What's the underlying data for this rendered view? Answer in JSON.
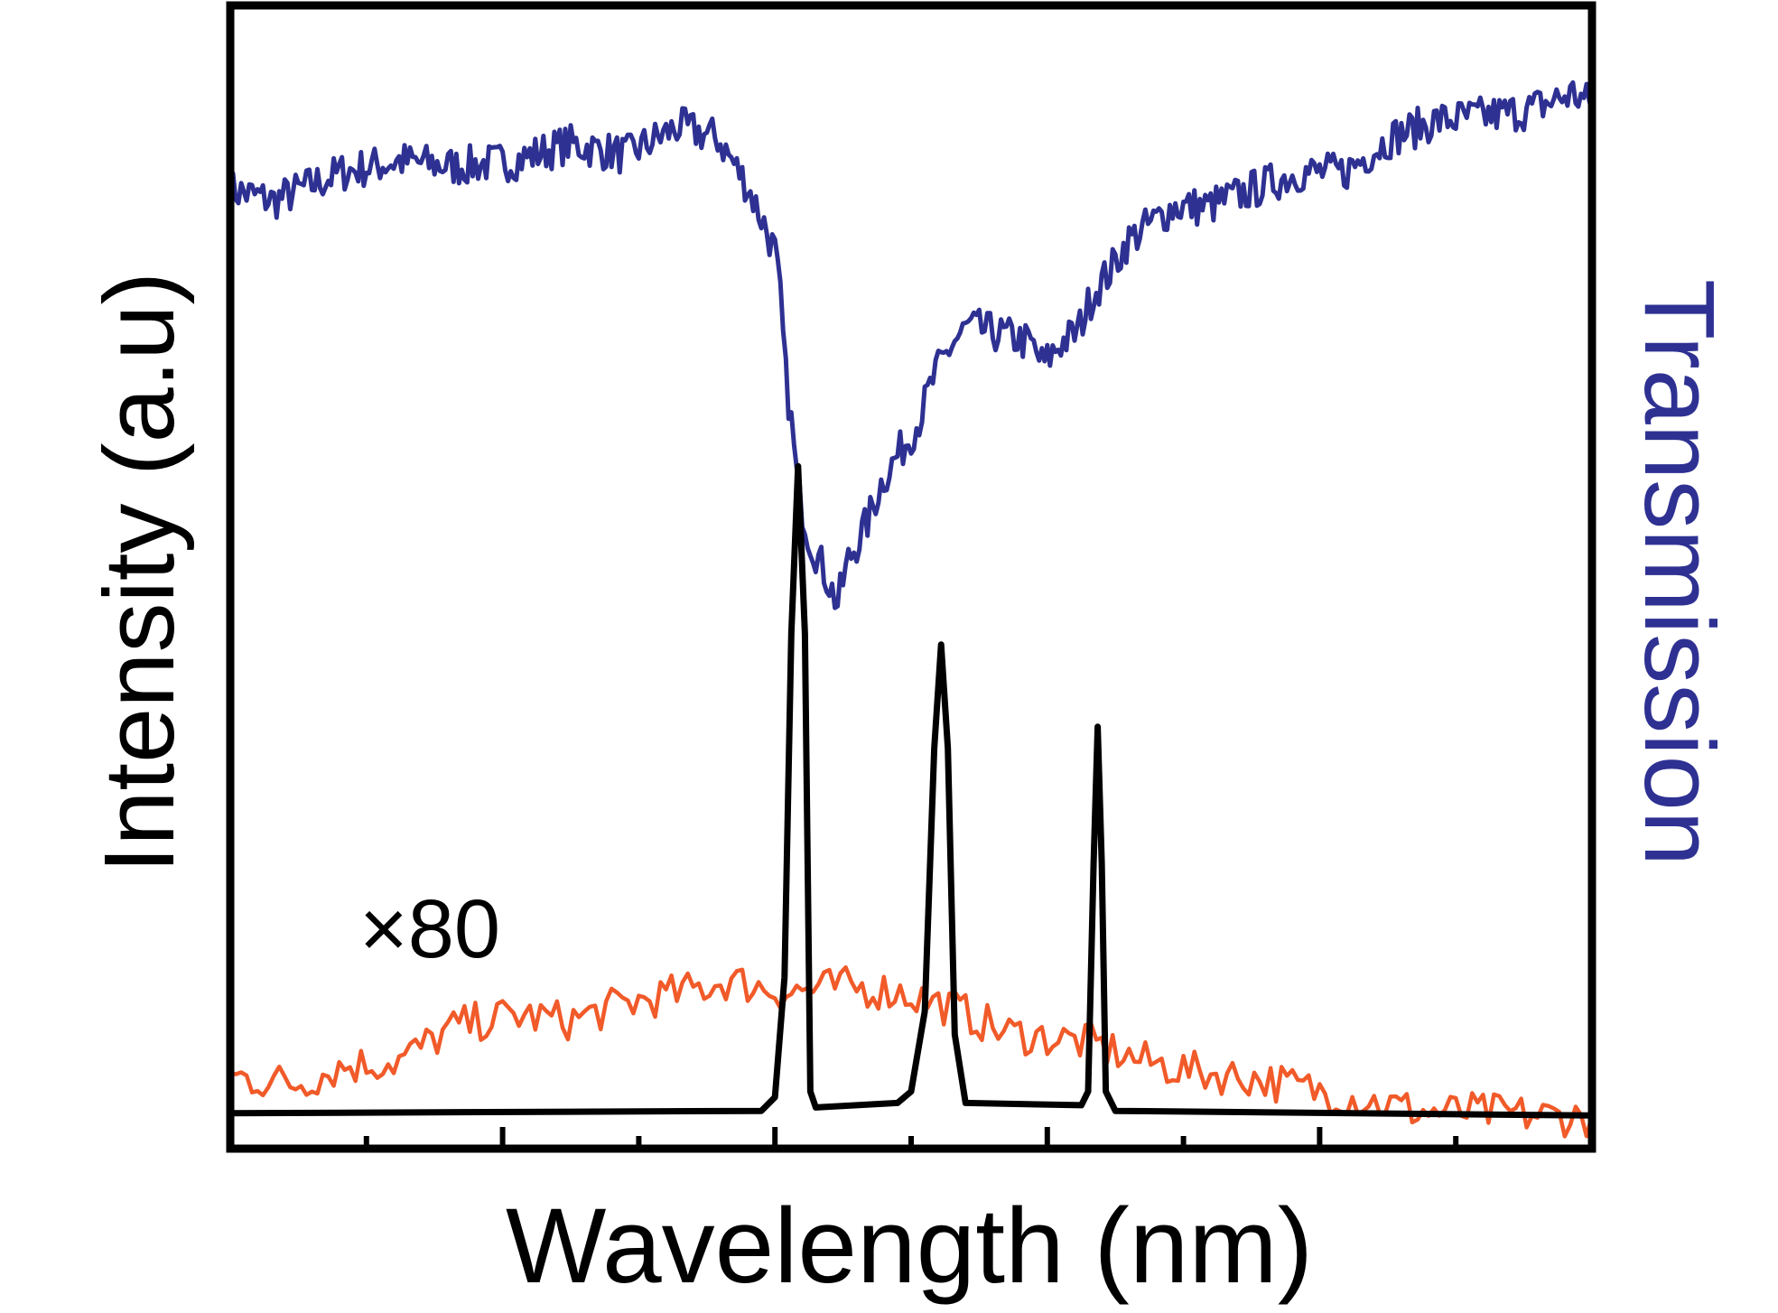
{
  "chart_data": {
    "type": "line",
    "title": "",
    "xlabel": "Wavelength (nm)",
    "ylabel": "Intensity (a.u)",
    "ylabel_right": "Transmission",
    "annotation": "×80",
    "xlim": [
      0,
      10
    ],
    "ylim": [
      0,
      1
    ],
    "grid": false,
    "legend": "none",
    "xticks_minor": [
      1,
      3,
      5,
      7,
      9
    ],
    "xticks_major": [
      2,
      4,
      6,
      8
    ],
    "tick_labels": [],
    "colors": {
      "transmission": "#2e3192",
      "scaled_spectrum": "#f15a29",
      "intensity": "#000000",
      "right_label": "#2e3192"
    },
    "series": [
      {
        "key": "transmission",
        "axis": "right",
        "x": [
          0,
          0.32,
          0.82,
          1.24,
          1.66,
          2.08,
          2.49,
          2.91,
          3.29,
          3.58,
          3.79,
          3.92,
          4.0,
          4.04,
          4.08,
          4.13,
          4.17,
          4.25,
          4.38,
          4.46,
          4.54,
          4.67,
          4.79,
          4.92,
          5.05,
          5.17,
          5.3,
          5.42,
          5.59,
          5.76,
          5.88,
          5.97,
          6.09,
          6.22,
          6.34,
          6.47,
          6.59,
          6.76,
          6.93,
          7.18,
          7.51,
          7.85,
          8.18,
          8.52,
          8.85,
          9.19,
          9.52,
          9.86,
          10
        ],
        "y": [
          0.839,
          0.829,
          0.854,
          0.864,
          0.859,
          0.864,
          0.879,
          0.869,
          0.894,
          0.884,
          0.844,
          0.809,
          0.784,
          0.744,
          0.675,
          0.625,
          0.575,
          0.535,
          0.5,
          0.476,
          0.515,
          0.545,
          0.585,
          0.61,
          0.635,
          0.675,
          0.704,
          0.719,
          0.714,
          0.709,
          0.704,
          0.685,
          0.704,
          0.714,
          0.749,
          0.769,
          0.794,
          0.809,
          0.824,
          0.824,
          0.839,
          0.854,
          0.854,
          0.884,
          0.899,
          0.903,
          0.908,
          0.923,
          0.913
        ]
      },
      {
        "key": "scaled_spectrum",
        "axis": "left",
        "x": [
          0,
          0.49,
          0.82,
          1.24,
          1.66,
          2.08,
          2.49,
          2.91,
          3.33,
          3.66,
          4.08,
          4.5,
          4.92,
          5.34,
          5.67,
          6.01,
          6.34,
          6.68,
          7.1,
          7.51,
          7.93,
          8.35,
          8.77,
          9.19,
          9.61,
          10
        ],
        "y": [
          0.063,
          0.057,
          0.072,
          0.077,
          0.107,
          0.117,
          0.112,
          0.127,
          0.137,
          0.147,
          0.137,
          0.142,
          0.137,
          0.122,
          0.102,
          0.097,
          0.092,
          0.077,
          0.067,
          0.062,
          0.052,
          0.042,
          0.032,
          0.032,
          0.029,
          0.027
        ]
      },
      {
        "key": "intensity",
        "axis": "left",
        "x": [
          0,
          3.9,
          4.0,
          4.07,
          4.12,
          4.17,
          4.22,
          4.26,
          4.3,
          4.9,
          5.0,
          5.1,
          5.17,
          5.22,
          5.27,
          5.32,
          5.4,
          6.25,
          6.3,
          6.34,
          6.37,
          6.4,
          6.43,
          6.5,
          10
        ],
        "y": [
          0.031,
          0.033,
          0.045,
          0.15,
          0.45,
          0.597,
          0.45,
          0.05,
          0.036,
          0.04,
          0.05,
          0.12,
          0.35,
          0.441,
          0.35,
          0.1,
          0.04,
          0.038,
          0.05,
          0.25,
          0.369,
          0.25,
          0.05,
          0.033,
          0.029
        ]
      }
    ]
  }
}
